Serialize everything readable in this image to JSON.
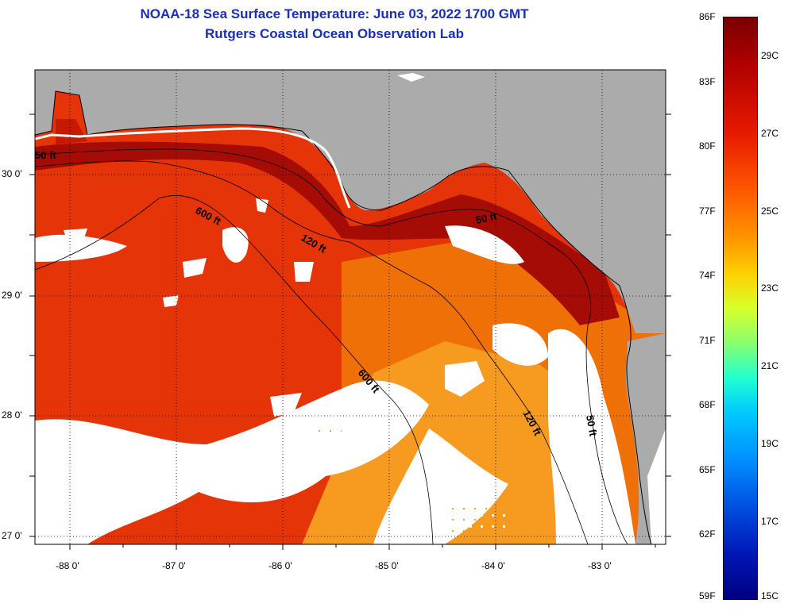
{
  "header": {
    "title_line1": "NOAA-18 Sea Surface Temperature:  June 03, 2022 1700 GMT",
    "title_line2": "Rutgers Coastal Ocean Observation Lab"
  },
  "map": {
    "lon_labels": [
      "-88 0'",
      "-87 0'",
      "-86 0'",
      "-85 0'",
      "-84 0'",
      "-83 0'"
    ],
    "lat_labels": [
      "30 0'",
      "29 0'",
      "28 0'",
      "27 0'"
    ],
    "contour_labels": [
      "50 ft",
      "600 ft",
      "120 ft",
      "50 ft",
      "600 ft",
      "120 ft",
      "50 ft"
    ],
    "colors": {
      "land": "#ababab",
      "cloud": "#ffffff",
      "sst_hot": "#c81800",
      "sst_warm": "#e43408",
      "sst_mid": "#f07008",
      "sst_cool": "#f79a20",
      "nearshore": "#a50c06"
    }
  },
  "colorbar": {
    "fahrenheit_labels": [
      "86F",
      "83F",
      "80F",
      "77F",
      "74F",
      "71F",
      "68F",
      "65F",
      "62F",
      "59F"
    ],
    "celsius_labels": [
      "29C",
      "27C",
      "25C",
      "23C",
      "21C",
      "19C",
      "17C",
      "15C"
    ]
  }
}
